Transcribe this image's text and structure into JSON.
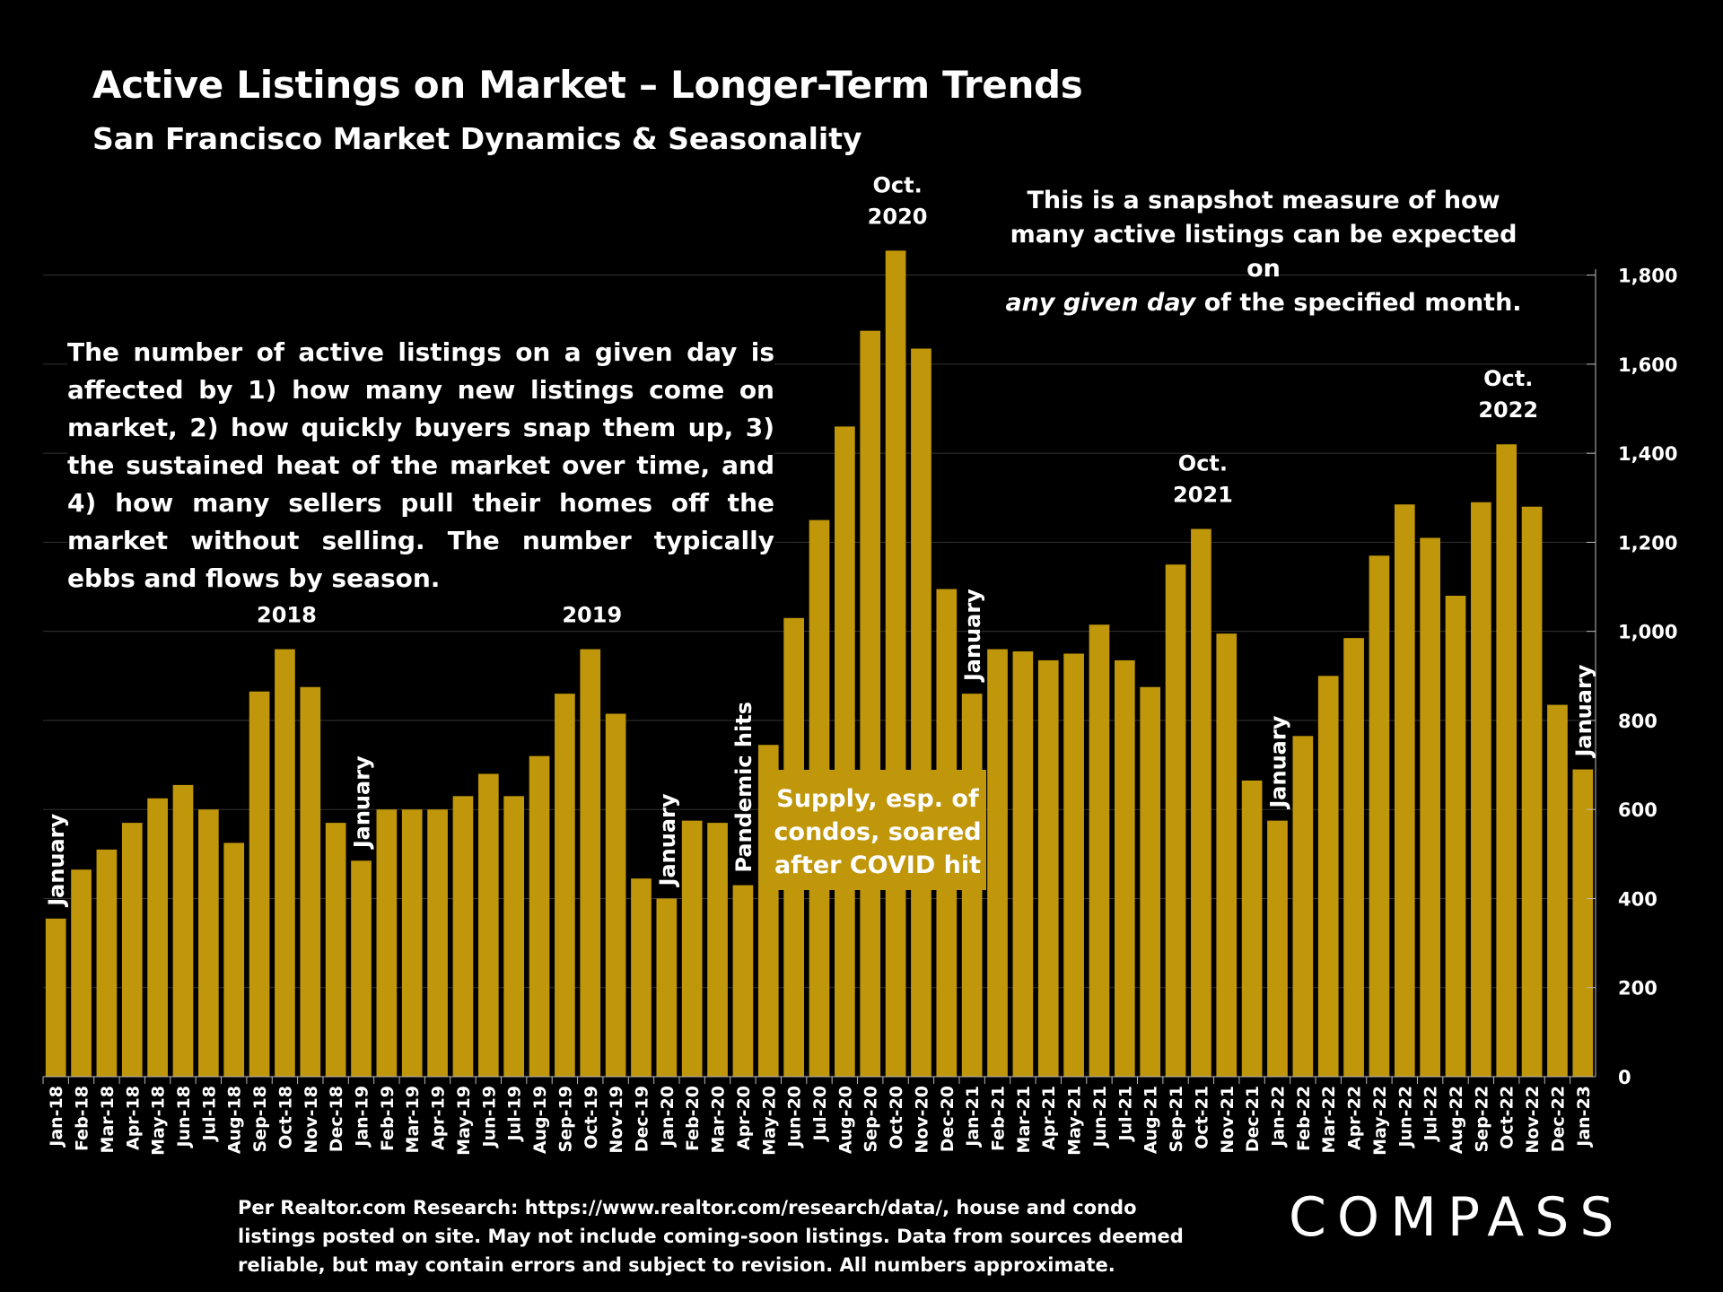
{
  "title": "Active Listings on Market – Longer-Term Trends",
  "subtitle": "San Francisco Market Dynamics & Seasonality",
  "snapshot_note": {
    "line1": "This is a snapshot measure of how",
    "line2": "many active listings can be expected on",
    "line3_italic": "any given day",
    "line3_rest": " of the specified month."
  },
  "explanation": "The number of active listings on a given day is affected by 1) how many new listings come on market, 2) how quickly buyers snap them up, 3) the sustained heat of the market over time, and 4) how many sellers pull their homes off the market without selling. The number typically ebbs and flows by season.",
  "covid_note": "Supply, esp. of condos, soared after COVID hit",
  "source": "Per Realtor.com Research:  https://www.realtor.com/research/data/, house and condo listings posted on site. May not include coming-soon listings. Data from sources deemed reliable, but may contain errors and subject to revision. All numbers approximate.",
  "logo": "COMPASS",
  "colors": {
    "bar": "#c0960a",
    "background": "#000000",
    "grid": "#333333",
    "text": "#ffffff"
  },
  "chart_data": {
    "type": "bar",
    "title": "Active Listings on Market – Longer-Term Trends",
    "categories": [
      "Jan-18",
      "Feb-18",
      "Mar-18",
      "Apr-18",
      "May-18",
      "Jun-18",
      "Jul-18",
      "Aug-18",
      "Sep-18",
      "Oct-18",
      "Nov-18",
      "Dec-18",
      "Jan-19",
      "Feb-19",
      "Mar-19",
      "Apr-19",
      "May-19",
      "Jun-19",
      "Jul-19",
      "Aug-19",
      "Sep-19",
      "Oct-19",
      "Nov-19",
      "Dec-19",
      "Jan-20",
      "Feb-20",
      "Mar-20",
      "Apr-20",
      "May-20",
      "Jun-20",
      "Jul-20",
      "Aug-20",
      "Sep-20",
      "Oct-20",
      "Nov-20",
      "Dec-20",
      "Jan-21",
      "Feb-21",
      "Mar-21",
      "Apr-21",
      "May-21",
      "Jun-21",
      "Jul-21",
      "Aug-21",
      "Sep-21",
      "Oct-21",
      "Nov-21",
      "Dec-21",
      "Jan-22",
      "Feb-22",
      "Mar-22",
      "Apr-22",
      "May-22",
      "Jun-22",
      "Jul-22",
      "Aug-22",
      "Sep-22",
      "Oct-22",
      "Nov-22",
      "Dec-22",
      "Jan-23"
    ],
    "values": [
      355,
      465,
      510,
      570,
      625,
      655,
      600,
      525,
      865,
      960,
      875,
      570,
      485,
      600,
      600,
      600,
      630,
      680,
      630,
      720,
      860,
      960,
      815,
      445,
      400,
      575,
      570,
      430,
      745,
      1030,
      1250,
      1460,
      1675,
      1855,
      1635,
      1095,
      860,
      960,
      955,
      935,
      950,
      1015,
      935,
      875,
      1150,
      1230,
      995,
      665,
      575,
      765,
      900,
      985,
      1170,
      1285,
      1210,
      1080,
      1290,
      1420,
      1280,
      835,
      690
    ],
    "ylim": [
      0,
      1900
    ],
    "yticks": [
      "0",
      "200",
      "400",
      "600",
      "800",
      "1,000",
      "1,200",
      "1,400",
      "1,600",
      "1,800"
    ],
    "ytick_values": [
      0,
      200,
      400,
      600,
      800,
      1000,
      1200,
      1400,
      1600,
      1800
    ],
    "axis_position": "right",
    "grid": true,
    "annotations": [
      {
        "index": 0,
        "text": "January",
        "rotated": true
      },
      {
        "index": 12,
        "text": "January",
        "rotated": true
      },
      {
        "index": 24,
        "text": "January",
        "rotated": true
      },
      {
        "index": 27,
        "text": "Pandemic hits",
        "rotated": true
      },
      {
        "index": 36,
        "text": "January",
        "rotated": true
      },
      {
        "index": 48,
        "text": "January",
        "rotated": true
      },
      {
        "index": 60,
        "text": "January",
        "rotated": true
      },
      {
        "index": 9,
        "text": "Oct.|2018",
        "rotated": false
      },
      {
        "index": 21,
        "text": "Oct.|2019",
        "rotated": false
      },
      {
        "index": 33,
        "text": "Oct.|2020",
        "rotated": false
      },
      {
        "index": 45,
        "text": "Oct.|2021",
        "rotated": false
      },
      {
        "index": 57,
        "text": "Oct.|2022",
        "rotated": false
      }
    ]
  }
}
